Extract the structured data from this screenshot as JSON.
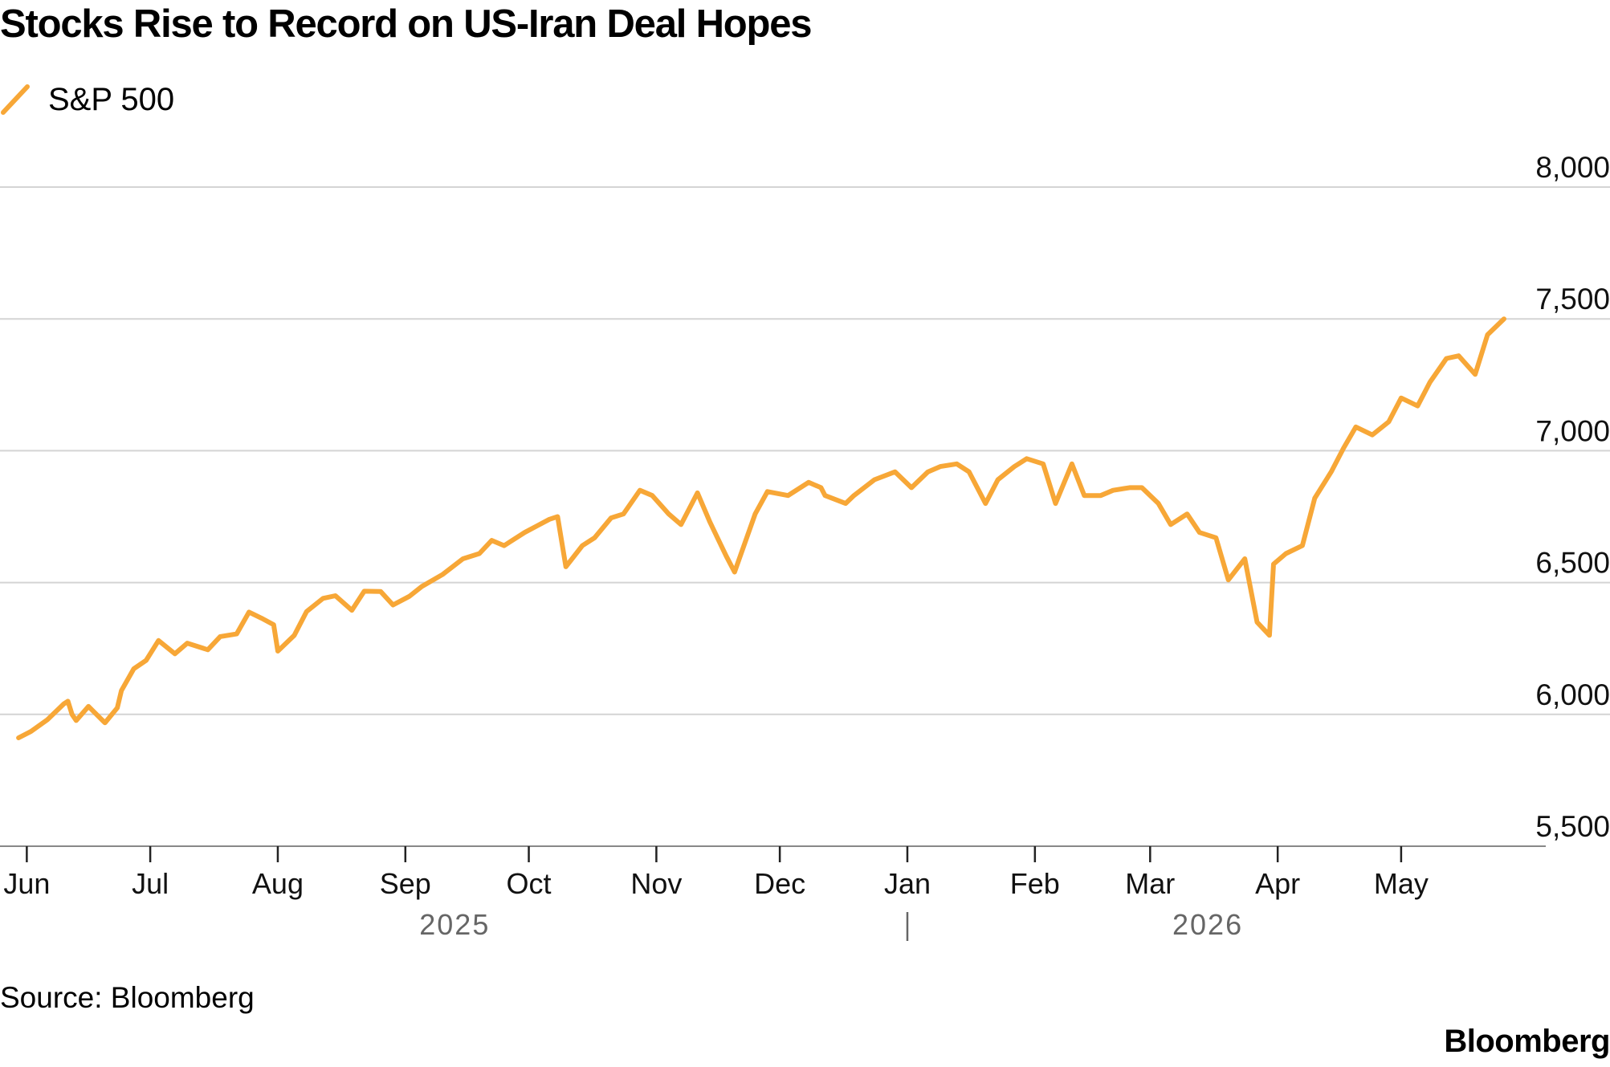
{
  "title": "Stocks Rise to Record on US-Iran Deal Hopes",
  "source": "Source: Bloomberg",
  "brand": "Bloomberg",
  "colors": {
    "line": "#F7A737",
    "grid": "#D4D4D4",
    "axis": "#222222",
    "year_label": "#666666"
  },
  "chart_data": {
    "type": "line",
    "title": "Stocks Rise to Record on US-Iran Deal Hopes",
    "xlabel": "",
    "ylabel": "",
    "ylim": [
      5500,
      8000
    ],
    "yticks": [
      8000,
      7500,
      7000,
      6500,
      6000,
      5500
    ],
    "ytick_labels": [
      "8,000",
      "7,500",
      "7,000",
      "6,500",
      "6,000",
      "5,500"
    ],
    "xlim": [
      "2025-05-29",
      "2026-05-26"
    ],
    "xticks": [
      {
        "date": "2025-06-01",
        "label": "Jun"
      },
      {
        "date": "2025-07-01",
        "label": "Jul"
      },
      {
        "date": "2025-08-01",
        "label": "Aug"
      },
      {
        "date": "2025-09-01",
        "label": "Sep"
      },
      {
        "date": "2025-10-01",
        "label": "Oct"
      },
      {
        "date": "2025-11-01",
        "label": "Nov"
      },
      {
        "date": "2025-12-01",
        "label": "Dec"
      },
      {
        "date": "2026-01-01",
        "label": "Jan"
      },
      {
        "date": "2026-02-01",
        "label": "Feb"
      },
      {
        "date": "2026-03-01",
        "label": "Mar"
      },
      {
        "date": "2026-04-01",
        "label": "Apr"
      },
      {
        "date": "2026-05-01",
        "label": "May"
      }
    ],
    "year_labels": [
      {
        "label": "2025",
        "date": "2025-09-13"
      },
      {
        "label": "2026",
        "date": "2026-03-15"
      }
    ],
    "year_divider": "2026-01-01",
    "grid": true,
    "legend": "top-left",
    "series": [
      {
        "name": "S&P 500",
        "x": [
          "2025-05-30",
          "2025-06-02",
          "2025-06-06",
          "2025-06-10",
          "2025-06-11",
          "2025-06-12",
          "2025-06-13",
          "2025-06-16",
          "2025-06-20",
          "2025-06-23",
          "2025-06-24",
          "2025-06-27",
          "2025-06-30",
          "2025-07-03",
          "2025-07-07",
          "2025-07-10",
          "2025-07-15",
          "2025-07-18",
          "2025-07-22",
          "2025-07-25",
          "2025-07-28",
          "2025-07-31",
          "2025-08-01",
          "2025-08-05",
          "2025-08-08",
          "2025-08-12",
          "2025-08-15",
          "2025-08-19",
          "2025-08-22",
          "2025-08-26",
          "2025-08-29",
          "2025-09-02",
          "2025-09-05",
          "2025-09-10",
          "2025-09-15",
          "2025-09-19",
          "2025-09-22",
          "2025-09-25",
          "2025-09-30",
          "2025-10-03",
          "2025-10-06",
          "2025-10-08",
          "2025-10-10",
          "2025-10-14",
          "2025-10-17",
          "2025-10-21",
          "2025-10-24",
          "2025-10-28",
          "2025-10-31",
          "2025-11-04",
          "2025-11-07",
          "2025-11-11",
          "2025-11-14",
          "2025-11-18",
          "2025-11-20",
          "2025-11-25",
          "2025-11-28",
          "2025-12-03",
          "2025-12-08",
          "2025-12-11",
          "2025-12-12",
          "2025-12-17",
          "2025-12-19",
          "2025-12-24",
          "2025-12-29",
          "2026-01-02",
          "2026-01-06",
          "2026-01-09",
          "2026-01-13",
          "2026-01-16",
          "2026-01-20",
          "2026-01-23",
          "2026-01-27",
          "2026-01-30",
          "2026-02-03",
          "2026-02-06",
          "2026-02-10",
          "2026-02-13",
          "2026-02-17",
          "2026-02-20",
          "2026-02-24",
          "2026-02-27",
          "2026-03-03",
          "2026-03-06",
          "2026-03-10",
          "2026-03-13",
          "2026-03-17",
          "2026-03-20",
          "2026-03-24",
          "2026-03-27",
          "2026-03-30",
          "2026-03-31",
          "2026-04-03",
          "2026-04-07",
          "2026-04-10",
          "2026-04-14",
          "2026-04-17",
          "2026-04-20",
          "2026-04-24",
          "2026-04-28",
          "2026-05-01",
          "2026-05-05",
          "2026-05-08",
          "2026-05-12",
          "2026-05-15",
          "2026-05-19",
          "2026-05-22",
          "2026-05-26"
        ],
        "y": [
          5911,
          5935,
          5980,
          6040,
          6050,
          6000,
          5977,
          6030,
          5968,
          6025,
          6090,
          6173,
          6205,
          6280,
          6230,
          6270,
          6245,
          6295,
          6305,
          6388,
          6365,
          6340,
          6240,
          6300,
          6390,
          6440,
          6450,
          6395,
          6467,
          6466,
          6415,
          6448,
          6485,
          6530,
          6590,
          6610,
          6660,
          6640,
          6690,
          6715,
          6740,
          6750,
          6560,
          6640,
          6670,
          6745,
          6760,
          6850,
          6830,
          6760,
          6720,
          6840,
          6730,
          6600,
          6540,
          6760,
          6845,
          6830,
          6880,
          6860,
          6830,
          6800,
          6830,
          6890,
          6920,
          6860,
          6920,
          6940,
          6950,
          6920,
          6800,
          6890,
          6940,
          6970,
          6950,
          6800,
          6950,
          6830,
          6830,
          6850,
          6860,
          6860,
          6800,
          6720,
          6760,
          6690,
          6670,
          6510,
          6590,
          6350,
          6300,
          6570,
          6610,
          6640,
          6820,
          6920,
          7010,
          7090,
          7060,
          7110,
          7200,
          7170,
          7260,
          7350,
          7360,
          7290,
          7440,
          7500
        ]
      }
    ]
  }
}
